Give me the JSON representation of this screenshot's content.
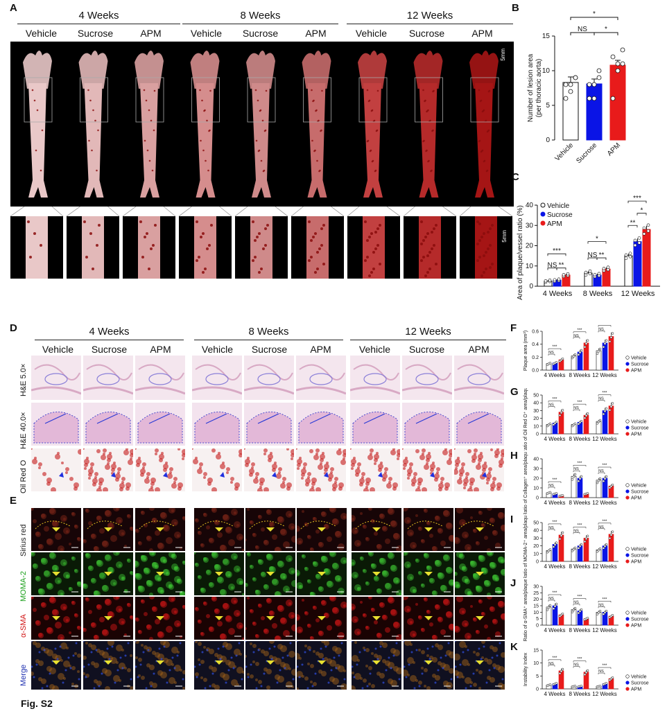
{
  "figure_label": "Fig. S2",
  "panel_letters": {
    "A": "A",
    "B": "B",
    "C": "C",
    "D": "D",
    "E": "E",
    "F": "F",
    "G": "G",
    "H": "H",
    "I": "I",
    "J": "J",
    "K": "K"
  },
  "timepoints": [
    "4 Weeks",
    "8 Weeks",
    "12 Weeks"
  ],
  "groups": [
    "Vehicle",
    "Sucrose",
    "APM"
  ],
  "scale_label": "5mm",
  "histo_rows": [
    "H&E 5.0×",
    "H&E 40.0×",
    "Oil Red O"
  ],
  "fluor_rows": [
    "Sirius red",
    "MOMA-2",
    "α-SMA",
    "Merge"
  ],
  "colors": {
    "vehicle": "#ffffff",
    "sucrose": "#0a14e6",
    "apm": "#e81b1b"
  },
  "sig": {
    "ns": "NS",
    "s1": "*",
    "s2": "**",
    "s3": "***"
  },
  "chart_data": [
    {
      "id": "B",
      "type": "bar",
      "categories": [
        "Vehicle",
        "Sucrose",
        "APM"
      ],
      "values": [
        8.3,
        8.1,
        10.8
      ],
      "errors": [
        0.8,
        0.7,
        0.7
      ],
      "ylabel": "Number of lesion area",
      "ylabel2": "(per thoracic aorta)",
      "ylim": [
        0,
        15
      ],
      "yticks": [
        0,
        5,
        10,
        15
      ],
      "points": [
        [
          6,
          8,
          9,
          8,
          7,
          9
        ],
        [
          6,
          8,
          9,
          8,
          6,
          10
        ],
        [
          6,
          10,
          11,
          12,
          11,
          13
        ]
      ]
    },
    {
      "id": "C",
      "type": "bar",
      "groups": [
        "4 Weeks",
        "8 Weeks",
        "12 Weeks"
      ],
      "series_labels": [
        "Vehicle",
        "Sucrose",
        "APM"
      ],
      "values": [
        [
          2.5,
          3.0,
          5.5
        ],
        [
          6.5,
          5.5,
          8.5
        ],
        [
          15,
          22,
          28
        ]
      ],
      "errors": [
        [
          0.4,
          0.4,
          0.5
        ],
        [
          0.8,
          0.6,
          0.7
        ],
        [
          1,
          1.5,
          1.8
        ]
      ],
      "ylabel": "Area of plaque/vessel ratio (%)",
      "ylim": [
        0,
        40
      ],
      "yticks": [
        0,
        10,
        20,
        30,
        40
      ]
    },
    {
      "id": "F",
      "ylabel": "Plaque area (mm²)",
      "ylim": [
        0,
        0.6
      ],
      "yticks": [
        "0.0",
        "0.2",
        "0.4",
        "0.6"
      ],
      "values": [
        [
          0.1,
          0.11,
          0.16
        ],
        [
          0.22,
          0.28,
          0.42
        ],
        [
          0.3,
          0.42,
          0.52
        ]
      ]
    },
    {
      "id": "G",
      "ylabel": "Ratio of Oil Red O⁺ area/plaque (%)",
      "ylim": [
        0,
        50
      ],
      "yticks": [
        "0",
        "10",
        "20",
        "30",
        "40",
        "50"
      ],
      "values": [
        [
          12,
          14,
          28
        ],
        [
          12,
          15,
          24
        ],
        [
          16,
          30,
          36
        ]
      ]
    },
    {
      "id": "H",
      "ylabel": "Ratio of Collagen⁺ area/plaque (%)",
      "ylim": [
        0,
        40
      ],
      "yticks": [
        "0",
        "10",
        "20",
        "30",
        "40"
      ],
      "values": [
        [
          5,
          4,
          2
        ],
        [
          22,
          20,
          4
        ],
        [
          18,
          20,
          12
        ]
      ]
    },
    {
      "id": "I",
      "ylabel": "Ratio of MOMA-2⁺ area/plaque (%)",
      "ylim": [
        0,
        50
      ],
      "yticks": [
        "0",
        "10",
        "20",
        "30",
        "40",
        "50"
      ],
      "values": [
        [
          14,
          22,
          34
        ],
        [
          16,
          20,
          30
        ],
        [
          15,
          20,
          35
        ]
      ]
    },
    {
      "id": "J",
      "ylabel": "Ratio of α-SMA⁺ area/plaque (%)",
      "ylim": [
        0,
        30
      ],
      "yticks": [
        "0",
        "5",
        "10",
        "15",
        "20",
        "25",
        "30"
      ],
      "values": [
        [
          14,
          15,
          8
        ],
        [
          12,
          11,
          5
        ],
        [
          10,
          10,
          7
        ]
      ]
    },
    {
      "id": "K",
      "ylabel": "Instability Index",
      "ylim": [
        0,
        15
      ],
      "yticks": [
        "0",
        "5",
        "10",
        "15"
      ],
      "values": [
        [
          1.5,
          2,
          7
        ],
        [
          1,
          1,
          6.5
        ],
        [
          1,
          2,
          4
        ]
      ]
    }
  ]
}
